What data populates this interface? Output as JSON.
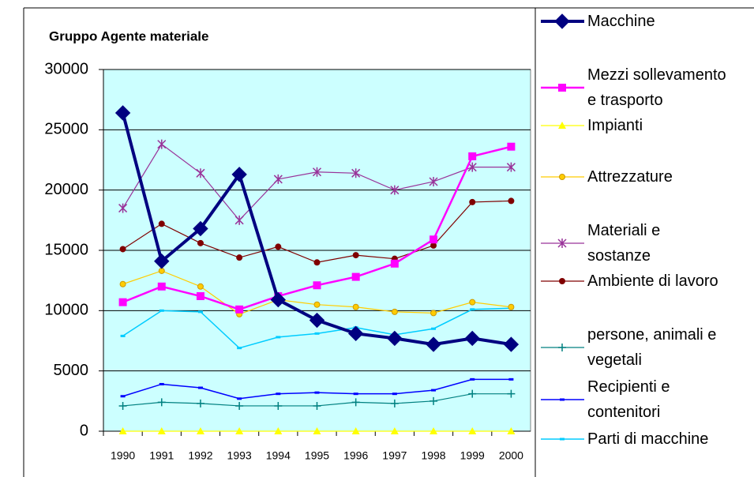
{
  "chart_data": {
    "type": "line",
    "title": "Gruppo Agente materiale",
    "categories": [
      "1990",
      "1991",
      "1992",
      "1993",
      "1994",
      "1995",
      "1996",
      "1997",
      "1998",
      "1999",
      "2000"
    ],
    "ylim": [
      0,
      30000
    ],
    "yticks": [
      0,
      5000,
      10000,
      15000,
      20000,
      25000,
      30000
    ],
    "grid": true,
    "legend": "right",
    "series": [
      {
        "name": "Macchine",
        "color": "#000080",
        "marker": "diamond",
        "values": [
          26400,
          14100,
          16800,
          21300,
          10900,
          9200,
          8100,
          7700,
          7200,
          7700,
          7200
        ]
      },
      {
        "name": "Mezzi sollevamento\ne trasporto",
        "color": "#ff00ff",
        "marker": "square",
        "values": [
          10700,
          12000,
          11200,
          10100,
          11200,
          12100,
          12800,
          13900,
          15900,
          22800,
          23600
        ]
      },
      {
        "name": "Impianti",
        "color": "#ffff00",
        "marker": "triangle",
        "values": [
          0,
          0,
          0,
          0,
          0,
          0,
          0,
          0,
          0,
          0,
          0
        ]
      },
      {
        "name": "Attrezzature",
        "color": "#ffcc00",
        "marker": "circle",
        "values": [
          12200,
          13300,
          12000,
          9700,
          10900,
          10500,
          10300,
          9900,
          9800,
          10700,
          10300
        ]
      },
      {
        "name": "Materiali e\nsostanze",
        "color": "#993399",
        "marker": "star",
        "values": [
          18500,
          23800,
          21400,
          17500,
          20900,
          21500,
          21400,
          20000,
          20700,
          21900,
          21900
        ]
      },
      {
        "name": "Ambiente di lavoro",
        "color": "#800000",
        "marker": "circle",
        "values": [
          15100,
          17200,
          15600,
          14400,
          15300,
          14000,
          14600,
          14300,
          15400,
          19000,
          19100
        ]
      },
      {
        "name": "persone, animali e\nvegetali",
        "color": "#008080",
        "marker": "plus",
        "values": [
          2100,
          2400,
          2300,
          2100,
          2100,
          2100,
          2400,
          2300,
          2500,
          3100,
          3100
        ]
      },
      {
        "name": "Recipienti e\ncontenitori",
        "color": "#0000ff",
        "marker": "dash",
        "values": [
          2900,
          3900,
          3600,
          2700,
          3100,
          3200,
          3100,
          3100,
          3400,
          4300,
          4300
        ]
      },
      {
        "name": "Parti di macchine",
        "color": "#00ccff",
        "marker": "dash",
        "values": [
          7900,
          10000,
          9900,
          6900,
          7800,
          8100,
          8600,
          8000,
          8500,
          10100,
          10200
        ]
      }
    ]
  }
}
